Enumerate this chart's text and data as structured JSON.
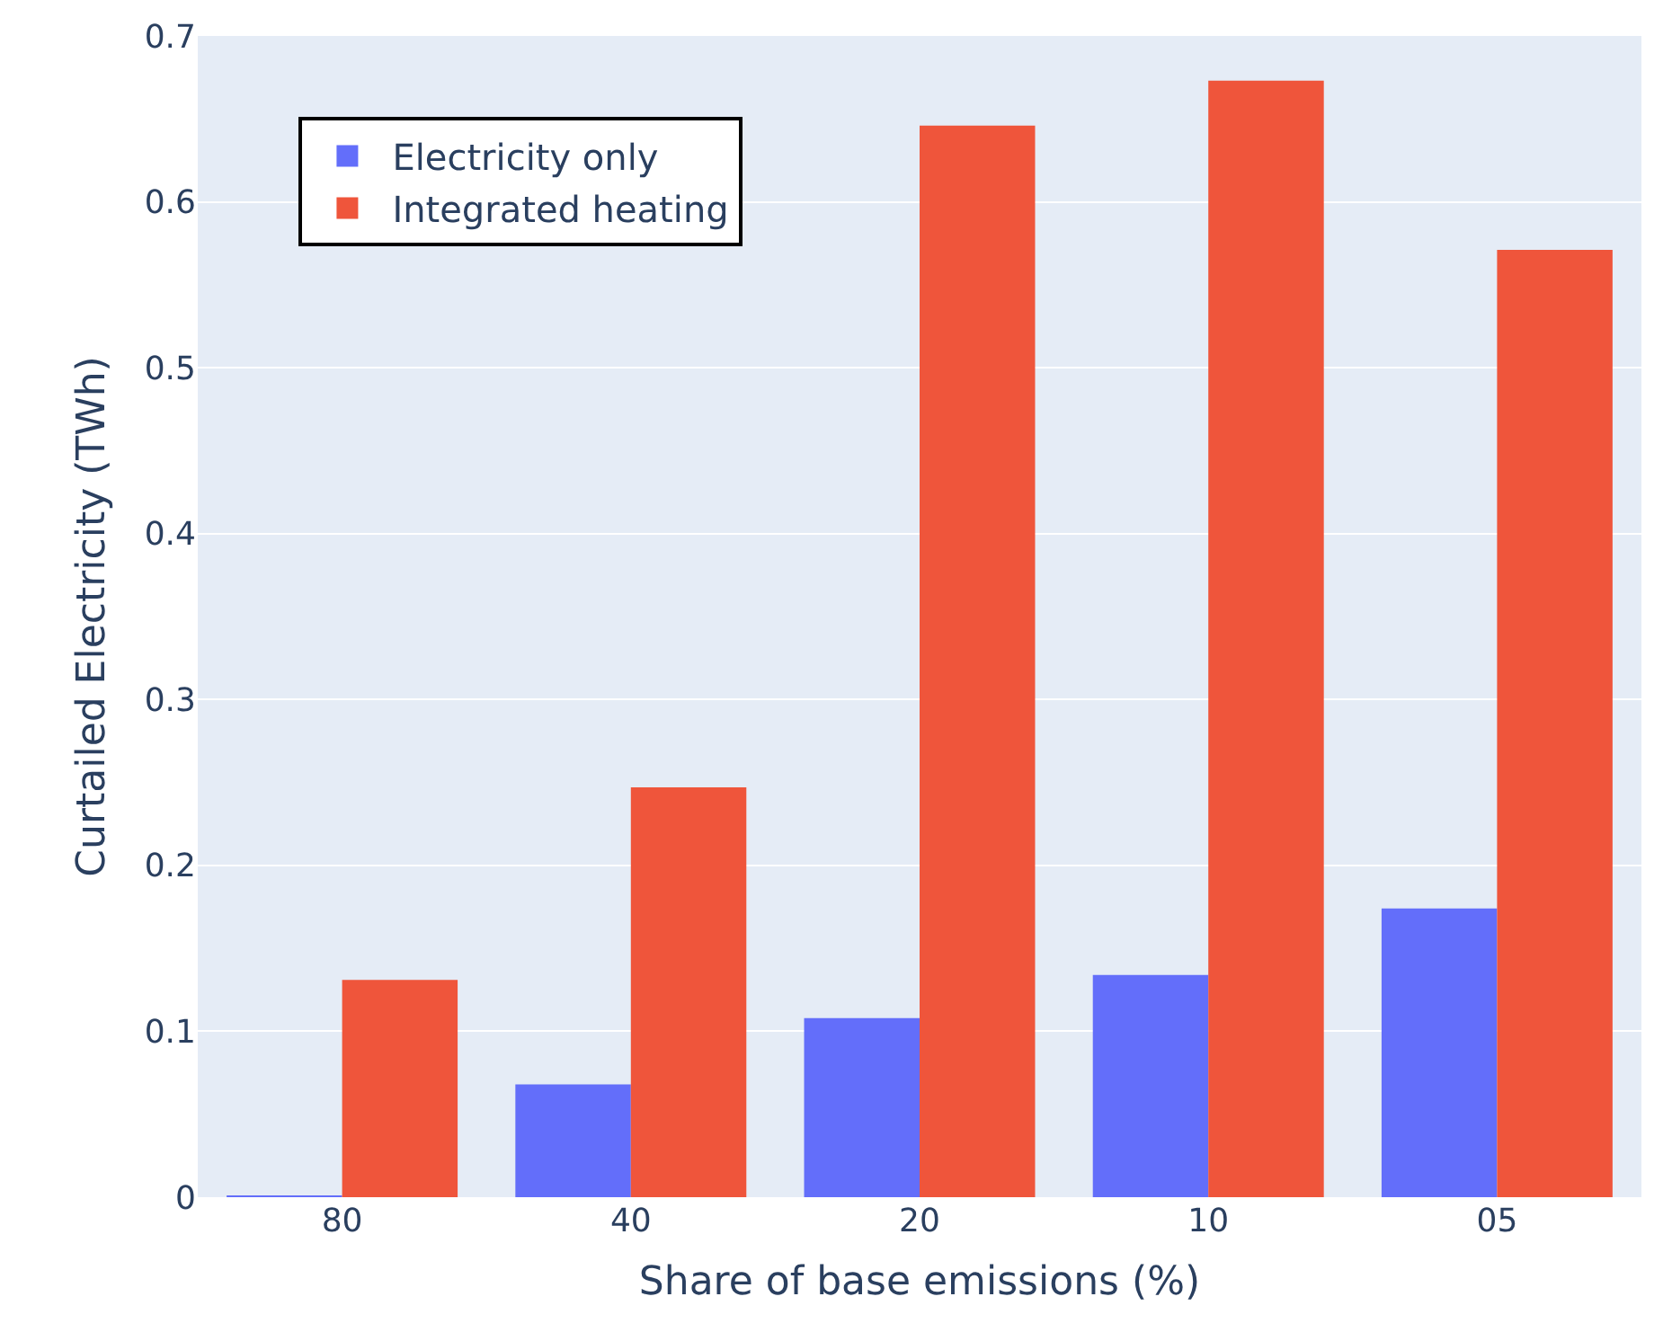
{
  "chart_data": {
    "type": "bar",
    "xlabel": "Share of base emissions (%)",
    "ylabel": "Curtailed Electricity (TWh)",
    "categories": [
      "80",
      "40",
      "20",
      "10",
      "05"
    ],
    "series": [
      {
        "name": "Electricity only",
        "color": "#636efa",
        "values": [
          0.001,
          0.068,
          0.108,
          0.134,
          0.174
        ]
      },
      {
        "name": "Integrated heating",
        "color": "#ef553b",
        "values": [
          0.131,
          0.247,
          0.646,
          0.673,
          0.571
        ]
      }
    ],
    "ylim": [
      0,
      0.7
    ],
    "yticks": [
      0,
      0.1,
      0.2,
      0.3,
      0.4,
      0.5,
      0.6,
      0.7
    ],
    "grid": "y",
    "legend": "top left"
  }
}
